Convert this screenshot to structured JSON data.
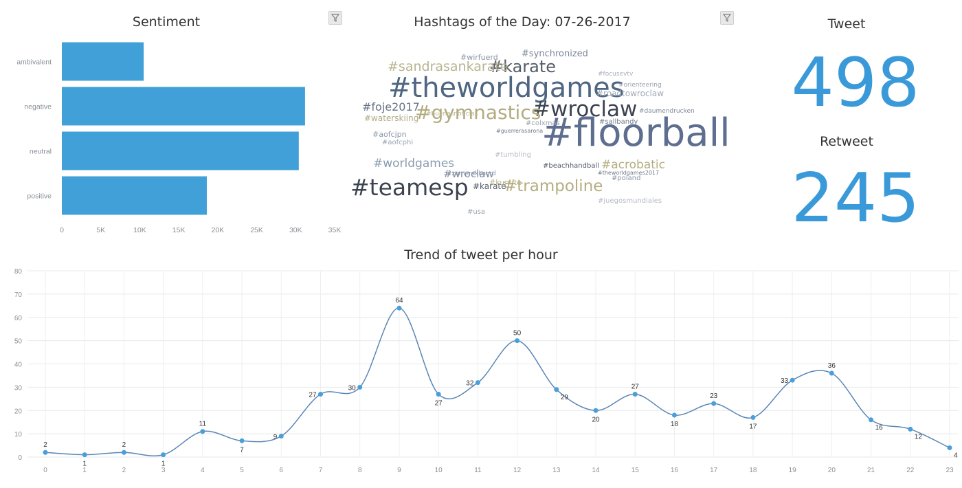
{
  "sentiment": {
    "title": "Sentiment",
    "chart_data": {
      "type": "bar",
      "orientation": "horizontal",
      "categories": [
        "ambivalent",
        "negative",
        "neutral",
        "positive"
      ],
      "values": [
        10500,
        31200,
        30400,
        18600
      ],
      "xlim": [
        0,
        35000
      ],
      "x_ticks": [
        0,
        5000,
        10000,
        15000,
        20000,
        25000,
        30000,
        35000
      ],
      "x_tick_labels": [
        "0",
        "5K",
        "10K",
        "15K",
        "20K",
        "25K",
        "30K",
        "35K"
      ],
      "color": "#41a0d8",
      "grid": false
    }
  },
  "hashtags": {
    "title": "Hashtags of the Day: 07-26-2017",
    "words": [
      {
        "text": "#floorball",
        "color": "#5e6e8f"
      },
      {
        "text": "#theworldgames",
        "color": "#4f6683"
      },
      {
        "text": "#teamesp",
        "color": "#3c4450"
      },
      {
        "text": "#wroclaw",
        "color": "#3b4350"
      },
      {
        "text": "#gymnastics",
        "color": "#b2ab7e"
      },
      {
        "text": "#karate",
        "color": "#555d6a"
      },
      {
        "text": "#trampoline",
        "color": "#b5ad80"
      },
      {
        "text": "#sandrasankarate",
        "color": "#b8b490"
      },
      {
        "text": "#worldgames",
        "color": "#8a9bb0"
      },
      {
        "text": "#acrobatic",
        "color": "#b3ac80"
      },
      {
        "text": "#foje2017",
        "color": "#667388"
      },
      {
        "text": "#wroclaw",
        "color": "#7f8ba0"
      },
      {
        "text": "#synchronized",
        "color": "#7a8699"
      },
      {
        "text": "#roadtowroclaw",
        "color": "#a0aab8"
      },
      {
        "text": "#waterskiing",
        "color": "#b0ac88"
      },
      {
        "text": "#karaté",
        "color": "#555d6a"
      },
      {
        "text": "#kumite",
        "color": "#b8b28a"
      },
      {
        "text": "#aofcjpn",
        "color": "#8a96a8"
      },
      {
        "text": "#aofcphi",
        "color": "#9aa4b2"
      },
      {
        "text": "#wirfuerd",
        "color": "#8a93a3"
      },
      {
        "text": "#focusevtv",
        "color": "#a8b0bc"
      },
      {
        "text": "#orienteering",
        "color": "#9aa3b0"
      },
      {
        "text": "#colxmas",
        "color": "#9aa3b0"
      },
      {
        "text": "#sallbandy",
        "color": "#6f7a8c"
      },
      {
        "text": "#beachhandball",
        "color": "#555d6a"
      },
      {
        "text": "#tumbling",
        "color": "#b7bcc6"
      },
      {
        "text": "#usa",
        "color": "#9aa3b0"
      },
      {
        "text": "#juegosmundiales",
        "color": "#b5bac4"
      },
      {
        "text": "#poland",
        "color": "#8a93a3"
      },
      {
        "text": "#buenasnoticias",
        "color": "#b8b490"
      },
      {
        "text": "#zomerakkoord",
        "color": "#8a93a3"
      },
      {
        "text": "#theworldgames2017",
        "color": "#6f7a8c"
      },
      {
        "text": "#daumendrucken",
        "color": "#7f8899"
      },
      {
        "text": "#guerrerasarona",
        "color": "#6f7a8c"
      }
    ]
  },
  "kpis": {
    "tweet_label": "Tweet",
    "tweet_value": "498",
    "retweet_label": "Retweet",
    "retweet_value": "245",
    "color": "#3a9ad9"
  },
  "trend": {
    "title": "Trend of tweet per hour",
    "chart_data": {
      "type": "line",
      "smooth": true,
      "x": [
        0,
        1,
        2,
        3,
        4,
        5,
        6,
        7,
        8,
        9,
        10,
        11,
        12,
        13,
        14,
        15,
        16,
        17,
        18,
        19,
        20,
        21,
        22,
        23
      ],
      "values": [
        2,
        1,
        2,
        1,
        11,
        7,
        9,
        27,
        30,
        64,
        27,
        32,
        50,
        29,
        20,
        27,
        18,
        23,
        17,
        33,
        36,
        16,
        12,
        4
      ],
      "ylim": [
        0,
        80
      ],
      "y_ticks": [
        0,
        10,
        20,
        30,
        40,
        50,
        60,
        70,
        80
      ],
      "grid": true,
      "data_labels": true,
      "color": "#5a86b5",
      "marker_color": "#4a9fdb"
    }
  }
}
